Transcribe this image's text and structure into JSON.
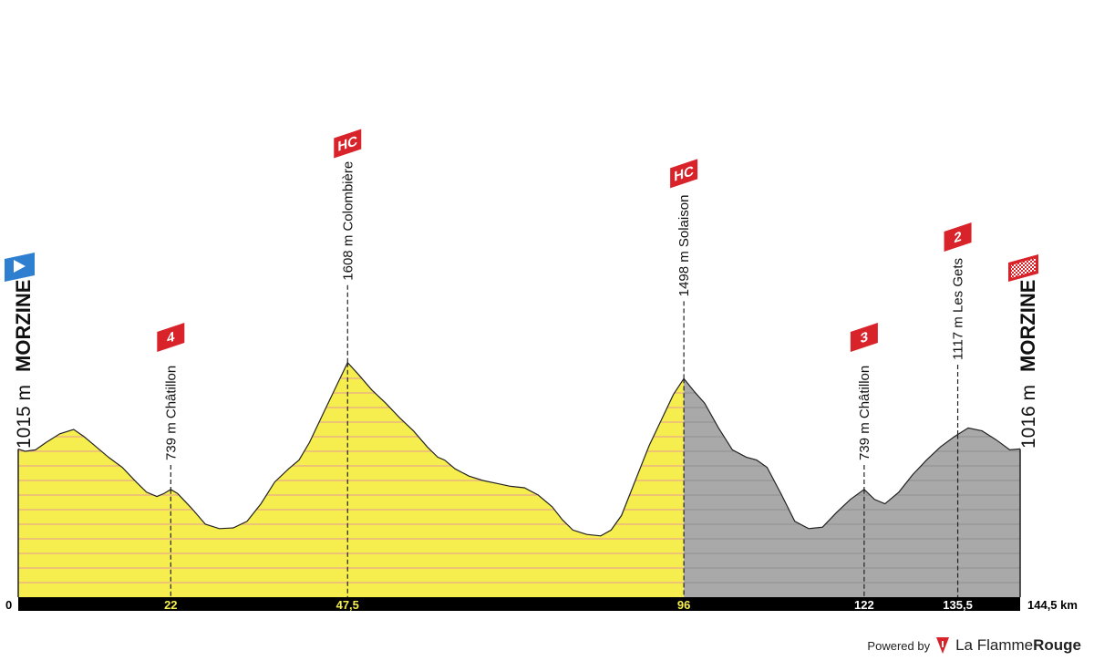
{
  "chart_data": {
    "type": "area",
    "title": "",
    "xlabel": "",
    "ylabel": "",
    "x_unit": "km",
    "x_ticks": [
      {
        "value": 0,
        "label": "0"
      },
      {
        "value": 22,
        "label": "22"
      },
      {
        "value": 47.5,
        "label": "47,5"
      },
      {
        "value": 96,
        "label": "96"
      },
      {
        "value": 122,
        "label": "122"
      },
      {
        "value": 135.5,
        "label": "135,5"
      },
      {
        "value": 144.5,
        "label": "144,5 km"
      }
    ],
    "xlim": [
      0,
      144.5
    ],
    "ylim": [
      0,
      1750
    ],
    "colors": {
      "raced": "#F5EE4E",
      "remaining": "#A9A9A9",
      "outline": "#222222",
      "axis_bar": "#000000",
      "tick_label_raced": "#F5EE4E",
      "tick_label_remaining": "#FFFFFF",
      "grid_raced": "#E39A9A",
      "grid_remaining": "#8E8E8E"
    },
    "raced_until_km": 96,
    "profile": [
      {
        "x": 0,
        "y": 1015
      },
      {
        "x": 1,
        "y": 1000
      },
      {
        "x": 2.5,
        "y": 1010
      },
      {
        "x": 4,
        "y": 1060
      },
      {
        "x": 6,
        "y": 1120
      },
      {
        "x": 8,
        "y": 1150
      },
      {
        "x": 9.5,
        "y": 1100
      },
      {
        "x": 11,
        "y": 1040
      },
      {
        "x": 13,
        "y": 960
      },
      {
        "x": 15,
        "y": 890
      },
      {
        "x": 17,
        "y": 790
      },
      {
        "x": 18.5,
        "y": 720
      },
      {
        "x": 20,
        "y": 690
      },
      {
        "x": 21,
        "y": 710
      },
      {
        "x": 22,
        "y": 739
      },
      {
        "x": 23,
        "y": 710
      },
      {
        "x": 25,
        "y": 610
      },
      {
        "x": 27,
        "y": 500
      },
      {
        "x": 29,
        "y": 470
      },
      {
        "x": 31,
        "y": 475
      },
      {
        "x": 33,
        "y": 520
      },
      {
        "x": 35,
        "y": 640
      },
      {
        "x": 37,
        "y": 790
      },
      {
        "x": 39,
        "y": 880
      },
      {
        "x": 40.5,
        "y": 940
      },
      {
        "x": 42,
        "y": 1060
      },
      {
        "x": 44,
        "y": 1260
      },
      {
        "x": 46,
        "y": 1460
      },
      {
        "x": 47.5,
        "y": 1608
      },
      {
        "x": 49,
        "y": 1530
      },
      {
        "x": 51,
        "y": 1420
      },
      {
        "x": 53,
        "y": 1330
      },
      {
        "x": 55,
        "y": 1230
      },
      {
        "x": 57,
        "y": 1140
      },
      {
        "x": 59,
        "y": 1030
      },
      {
        "x": 60.5,
        "y": 960
      },
      {
        "x": 61.5,
        "y": 940
      },
      {
        "x": 63,
        "y": 880
      },
      {
        "x": 65,
        "y": 830
      },
      {
        "x": 67,
        "y": 800
      },
      {
        "x": 69,
        "y": 780
      },
      {
        "x": 71,
        "y": 760
      },
      {
        "x": 73,
        "y": 750
      },
      {
        "x": 75,
        "y": 700
      },
      {
        "x": 77,
        "y": 620
      },
      {
        "x": 78.5,
        "y": 530
      },
      {
        "x": 80,
        "y": 460
      },
      {
        "x": 82,
        "y": 430
      },
      {
        "x": 84,
        "y": 420
      },
      {
        "x": 85.5,
        "y": 460
      },
      {
        "x": 87,
        "y": 560
      },
      {
        "x": 89,
        "y": 800
      },
      {
        "x": 91,
        "y": 1040
      },
      {
        "x": 93,
        "y": 1240
      },
      {
        "x": 94.5,
        "y": 1390
      },
      {
        "x": 96,
        "y": 1498
      },
      {
        "x": 97.5,
        "y": 1410
      },
      {
        "x": 99,
        "y": 1330
      },
      {
        "x": 101,
        "y": 1160
      },
      {
        "x": 103,
        "y": 1010
      },
      {
        "x": 105,
        "y": 960
      },
      {
        "x": 106.5,
        "y": 940
      },
      {
        "x": 108,
        "y": 890
      },
      {
        "x": 110,
        "y": 710
      },
      {
        "x": 112,
        "y": 520
      },
      {
        "x": 114,
        "y": 470
      },
      {
        "x": 116,
        "y": 480
      },
      {
        "x": 118,
        "y": 580
      },
      {
        "x": 120,
        "y": 670
      },
      {
        "x": 122,
        "y": 739
      },
      {
        "x": 123.5,
        "y": 670
      },
      {
        "x": 125,
        "y": 640
      },
      {
        "x": 127,
        "y": 720
      },
      {
        "x": 129,
        "y": 840
      },
      {
        "x": 131,
        "y": 940
      },
      {
        "x": 133,
        "y": 1030
      },
      {
        "x": 135,
        "y": 1100
      },
      {
        "x": 137,
        "y": 1160
      },
      {
        "x": 139,
        "y": 1140
      },
      {
        "x": 141,
        "y": 1080
      },
      {
        "x": 143,
        "y": 1010
      },
      {
        "x": 144.5,
        "y": 1016
      }
    ],
    "endpoints": [
      {
        "km": 0,
        "elevation_label": "1015 m",
        "name": "MORZINE",
        "marker": "start"
      },
      {
        "km": 144.5,
        "elevation_label": "1016 m",
        "name": "MORZINE",
        "marker": "finish"
      }
    ],
    "climbs": [
      {
        "km": 22,
        "label": "739 m Châtillon",
        "category": "4",
        "summit_alt": 739
      },
      {
        "km": 47.5,
        "label": "1608 m Colombière",
        "category": "HC",
        "summit_alt": 1608
      },
      {
        "km": 96,
        "label": "1498 m Solaison",
        "category": "HC",
        "summit_alt": 1498
      },
      {
        "km": 122,
        "label": "739 m Châtillon",
        "category": "3",
        "summit_alt": 739
      },
      {
        "km": 135.5,
        "label": "1117 m Les Gets",
        "category": "2",
        "summit_alt": 1117
      }
    ]
  },
  "footer": {
    "powered_by": "Powered by",
    "brand_regular": "La Flamme",
    "brand_bold": "Rouge"
  }
}
